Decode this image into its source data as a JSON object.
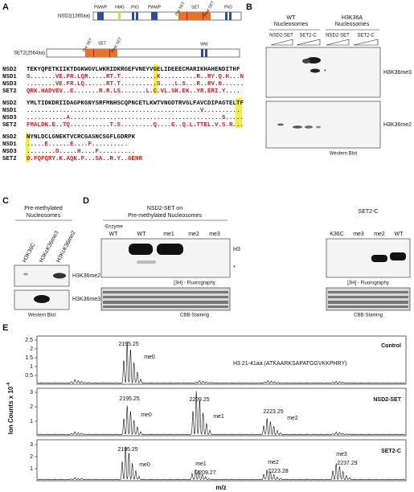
{
  "panel_a": {
    "label": "A",
    "nsd2": {
      "name": "NSD2(1365aa)",
      "domains": [
        "PWWP",
        "HMG",
        "PhD",
        "PWWP",
        "Pre SET",
        "SET",
        "Post SET",
        "PhD"
      ]
    },
    "set2": {
      "name": "SET2(2564aa)",
      "domains": [
        "Pre SET",
        "SET",
        "Post SET",
        "WW"
      ]
    },
    "alignment": [
      [
        [
          "NSD2",
          "TEKYQPETKIIKTDGKWGVLWKRIDKRGEFVNEYVGELIDEEECMARIKHAHENDITHF"
        ],
        [
          "NSD1",
          "S.......VE.FR.LQR.....RT.T..........K..........R..RY.Q.H...N"
        ],
        [
          "NSD3",
          "........VE.FR.LQ......RT.T..........S....L.S...R..RV.N......"
        ],
        [
          "SET2",
          "QRK.HADVEV..E.......R.R.LS.......L.C.VL.SK.EK..YR.ERI.Y...."
        ]
      ],
      [
        [
          "NSD2",
          "YMLTIDKDRIIDAGPKGNYSRFMNHSCQPNCETLKWTVNGDTRVGLFAVCDIPAGTELTF"
        ],
        [
          "NSD1",
          "................................................V.........."
        ],
        [
          "NSD3",
          "...........A..........................................S....."
        ],
        [
          "SET2",
          "FMALDN.E..TQ...........T.S.........Q....E..Q.L.TTEL.V.S.R..."
        ]
      ],
      [
        [
          "NSD2",
          "NYNLDCLGNEKTVCRCGASNCSGFLGDRPK"
        ],
        [
          "NSD1",
          ".....E......E....F.........."
        ],
        [
          "NSD3",
          "........D.....H....F.........."
        ],
        [
          "SET2",
          "D.FQFQRY.K.AQK.F...SA..R.Y..GENR"
        ]
      ]
    ]
  },
  "panel_b": {
    "label": "B",
    "groups": [
      [
        "WT",
        "Nucleosomes"
      ],
      [
        "H3K36A",
        "Nucleosomes"
      ]
    ],
    "lanes": [
      "NSD2-SET",
      "SET2-C",
      "NSD2-SET",
      "SET2-C"
    ],
    "blots": [
      "H3K36me3",
      "H3K36me2"
    ],
    "asterisk": "*",
    "footer": "Western Blot"
  },
  "panel_c": {
    "label": "C",
    "header": [
      "Pre-methylated",
      "Nucleosomes"
    ],
    "lanes": [
      "H3K36C",
      "H3KcK36me3",
      "H3KcK36me2"
    ],
    "blots": [
      "H3K36me2",
      "H3K36me3"
    ],
    "footer": "Western Blot"
  },
  "panel_d": {
    "label": "D",
    "left": {
      "header": [
        "NSD2-SET on",
        "Pre-methylated Nucleosomes"
      ],
      "no_enzyme": "-Enzyme",
      "lanes": [
        "WT",
        "WT",
        "me1",
        "me2",
        "me3"
      ],
      "band": "H3",
      "asterisk": "*",
      "fluoro": "[3H] - Fluorography",
      "stain": "CBB-Staining"
    },
    "right": {
      "header": "SET2-C",
      "lanes": [
        "K36C",
        "me3",
        "me2",
        "WT"
      ],
      "fluoro": "[3H] - Fluorography",
      "stain": "CBB-Staining"
    }
  },
  "panel_e": {
    "label": "E",
    "y_label": "Ion Counts x 10",
    "y_label_exp": "-4",
    "x_label": "m/z",
    "spectra": [
      {
        "title": "Control",
        "note": "H3 21-41aa (ATKAARKSAPATGGVKKPHRY)",
        "yticks": [
          "2.5",
          "2",
          "1.5",
          "1",
          "0.5"
        ],
        "peaks": [
          [
            "2195.25",
            "me0"
          ]
        ]
      },
      {
        "title": "NSD2-SET",
        "yticks": [
          "3",
          "2",
          "1"
        ],
        "peaks": [
          [
            "2195.25",
            "me0"
          ],
          [
            "2209.25",
            "me1"
          ],
          [
            "2223.25",
            "me2"
          ]
        ]
      },
      {
        "title": "SET2-C",
        "yticks": [
          "3",
          "2",
          "1"
        ],
        "peaks": [
          [
            "2195.25",
            "me0"
          ],
          [
            "2209.27",
            "me1"
          ],
          [
            "2223.28",
            "me2"
          ],
          [
            "2237.29",
            "me3"
          ]
        ]
      }
    ]
  }
}
